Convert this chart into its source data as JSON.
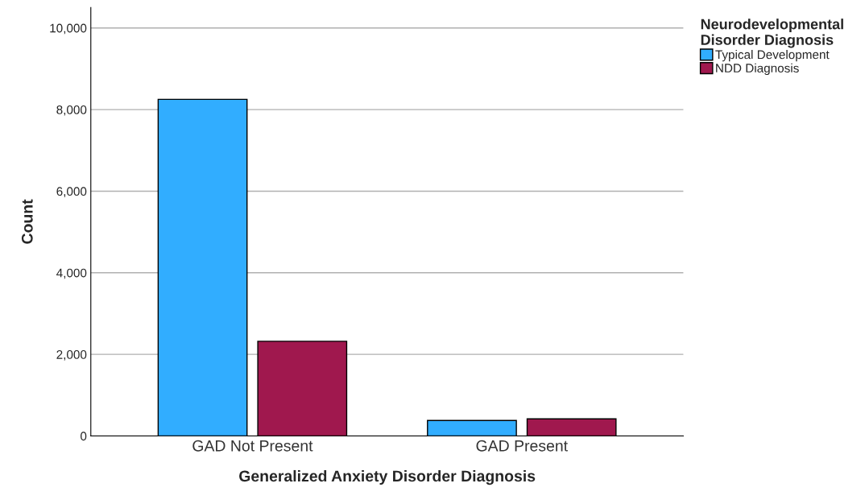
{
  "chart_data": {
    "type": "bar",
    "categories": [
      "GAD Not Present",
      "GAD Present"
    ],
    "series": [
      {
        "name": "Typical Development",
        "color": "#31adff",
        "values": [
          8250,
          380
        ]
      },
      {
        "name": "NDD Diagnosis",
        "color": "#a0184e",
        "values": [
          2320,
          420
        ]
      }
    ],
    "xlabel": "Generalized Anxiety Disorder Diagnosis",
    "ylabel": "Count",
    "legend_title": "Neurodevelopmental\nDisorder Diagnosis",
    "ylim": [
      0,
      10500
    ],
    "yticks": [
      0,
      {
        "value": 2000,
        "label": "2,000"
      },
      {
        "value": 4000,
        "label": "4,000"
      },
      {
        "value": 6000,
        "label": "6,000"
      },
      {
        "value": 8000,
        "label": "8,000"
      },
      {
        "value": 10000,
        "label": "10,000"
      }
    ],
    "grid": "y",
    "legend": "top right"
  }
}
